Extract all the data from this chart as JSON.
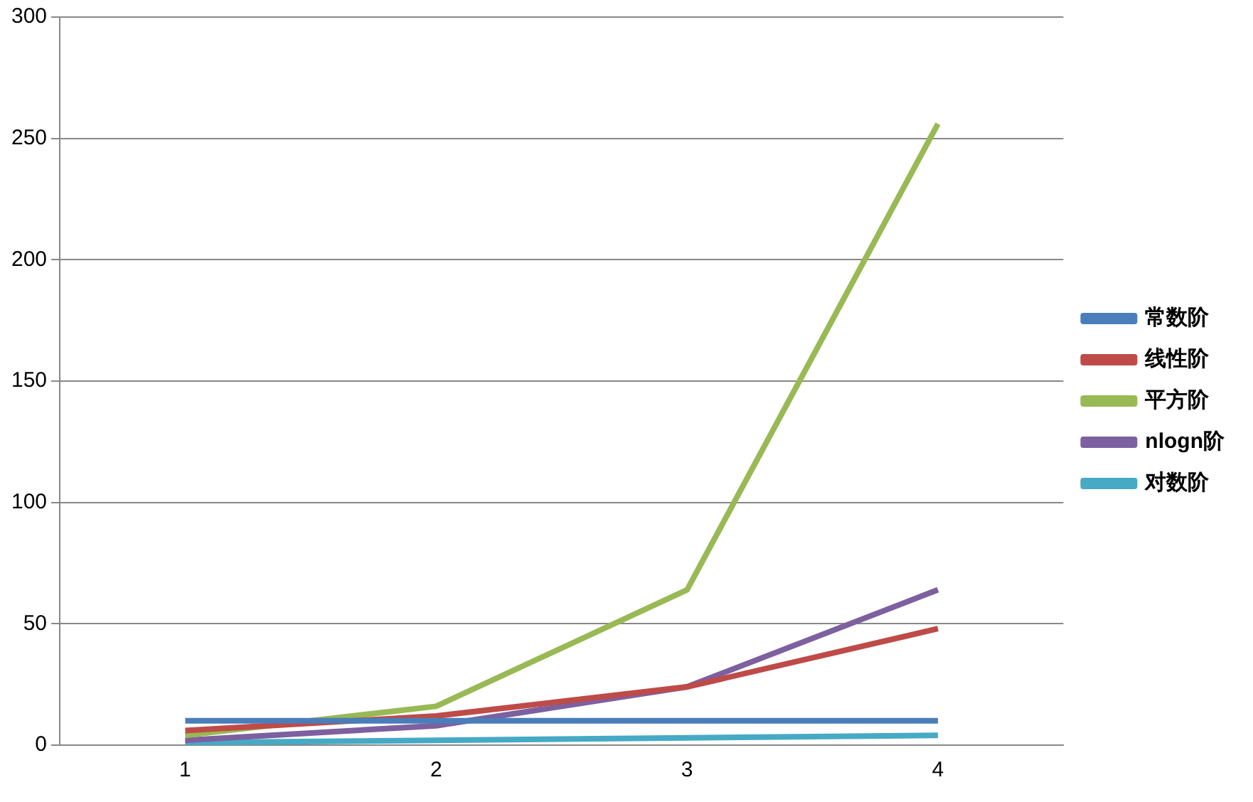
{
  "chart_data": {
    "type": "line",
    "categories": [
      "1",
      "2",
      "3",
      "4"
    ],
    "series": [
      {
        "name": "常数阶",
        "color": "#4a7ebb",
        "values": [
          10,
          10,
          10,
          10
        ]
      },
      {
        "name": "线性阶",
        "color": "#be4b48",
        "values": [
          6,
          12,
          24,
          48
        ]
      },
      {
        "name": "平方阶",
        "color": "#98b954",
        "values": [
          4,
          16,
          64,
          256
        ]
      },
      {
        "name": "nlogn阶",
        "color": "#7d60a0",
        "values": [
          2,
          8,
          24,
          64
        ]
      },
      {
        "name": "对数阶",
        "color": "#46aac5",
        "values": [
          1,
          2,
          3,
          4
        ]
      }
    ],
    "ylim": [
      0,
      300
    ],
    "yticks": [
      0,
      50,
      100,
      150,
      200,
      250,
      300
    ],
    "grid": "y",
    "legend": "right",
    "marker": "none",
    "line_style": "solid"
  }
}
